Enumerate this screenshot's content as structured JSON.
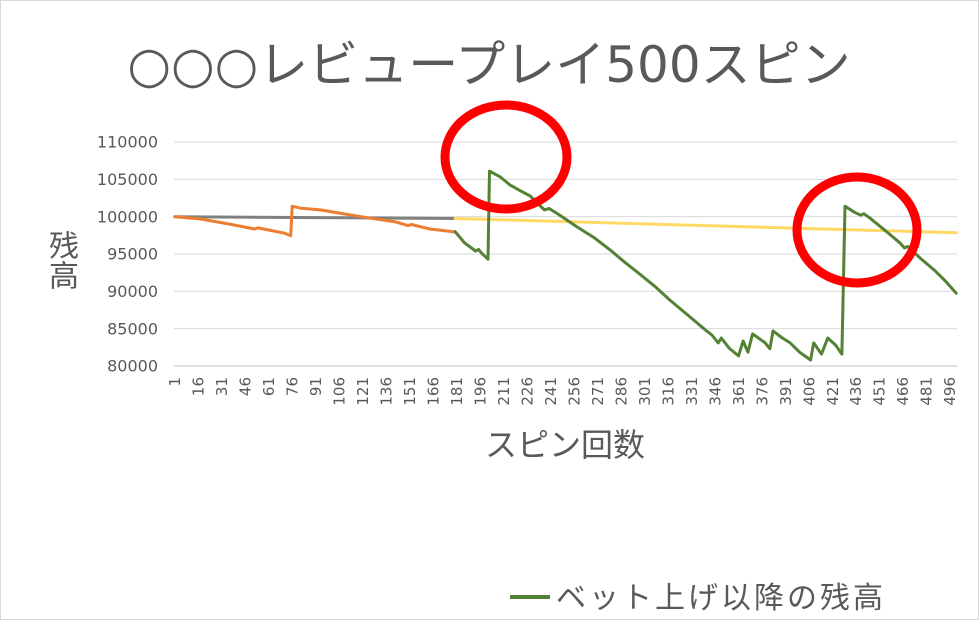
{
  "chart_data": {
    "type": "line",
    "title": "○○○レビュープレイ500スピン",
    "xlabel": "スピン回数",
    "ylabel": "残高",
    "xlim": [
      1,
      500
    ],
    "ylim": [
      80000,
      110000
    ],
    "yticks": [
      80000,
      85000,
      90000,
      95000,
      100000,
      105000,
      110000
    ],
    "xticks": [
      1,
      16,
      31,
      46,
      61,
      76,
      91,
      106,
      121,
      136,
      151,
      166,
      181,
      196,
      211,
      226,
      241,
      256,
      271,
      286,
      301,
      316,
      331,
      346,
      361,
      376,
      391,
      406,
      421,
      436,
      451,
      466,
      481,
      496
    ],
    "grid": {
      "horizontal": true,
      "vertical": false
    },
    "legend": {
      "position": "bottom"
    },
    "highlight_color": "#FF0000",
    "series": [
      {
        "color": "#808080",
        "x": [
          1,
          180
        ],
        "y": [
          100000,
          99750
        ]
      },
      {
        "color": "#ED7D31",
        "x": [
          1,
          17,
          36,
          52,
          54,
          71,
          75,
          76,
          81,
          94,
          110,
          126,
          142,
          150,
          152,
          164,
          180
        ],
        "y": [
          100000,
          99700,
          99000,
          98350,
          98500,
          97800,
          97450,
          101400,
          101150,
          100900,
          100350,
          99800,
          99300,
          98800,
          98950,
          98350,
          97950
        ]
      },
      {
        "color": "#FFD966",
        "x": [
          180,
          500
        ],
        "y": [
          99750,
          97850
        ]
      },
      {
        "name": "ベット上げ以降の残高",
        "color": "#548235",
        "x": [
          180,
          186,
          193,
          195,
          197,
          201,
          202,
          209,
          215,
          221,
          228,
          234,
          237,
          240,
          246,
          257,
          263,
          269,
          279,
          288,
          298,
          308,
          317,
          327,
          336,
          340,
          344,
          348,
          350,
          355,
          361,
          364,
          367,
          370,
          378,
          381,
          383,
          389,
          394,
          400,
          407,
          409,
          414,
          418,
          423,
          427,
          429,
          435,
          439,
          441,
          445,
          455,
          464,
          467,
          469,
          477,
          486,
          493,
          500
        ],
        "y": [
          98000,
          96500,
          95400,
          95600,
          95100,
          94300,
          106100,
          105300,
          104250,
          103550,
          102750,
          101500,
          100900,
          101100,
          100300,
          98750,
          97950,
          97150,
          95550,
          93950,
          92300,
          90600,
          88850,
          87100,
          85500,
          84800,
          84150,
          83100,
          83750,
          82400,
          81350,
          83350,
          81850,
          84300,
          83100,
          82300,
          84700,
          83750,
          83100,
          81850,
          80800,
          83100,
          81600,
          83750,
          82800,
          81600,
          101400,
          100600,
          100200,
          100400,
          99800,
          98100,
          96500,
          95800,
          96000,
          94450,
          92850,
          91400,
          89750
        ]
      }
    ]
  }
}
